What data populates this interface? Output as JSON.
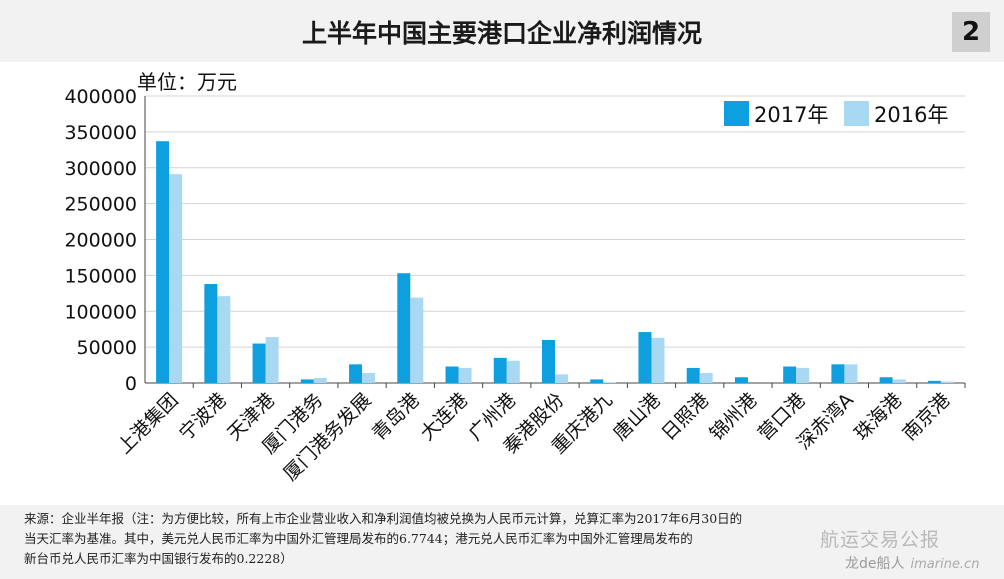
{
  "header": {
    "title": "上半年中国主要港口企业净利润情况",
    "page_number": "2"
  },
  "chart_data": {
    "type": "bar",
    "title": "上半年中国主要港口企业净利润情况",
    "unit_label": "单位：万元",
    "categories": [
      "上港集团",
      "宁波港",
      "天津港",
      "厦门港务",
      "厦门港务发展",
      "青岛港",
      "大连港",
      "广州港",
      "秦港股份",
      "重庆港九",
      "唐山港",
      "日照港",
      "锦州港",
      "营口港",
      "深赤湾A",
      "珠海港",
      "南京港"
    ],
    "series": [
      {
        "name": "2017年",
        "color": "#0e9fdf",
        "values": [
          337000,
          138000,
          55000,
          5000,
          26000,
          153000,
          23000,
          35000,
          60000,
          5000,
          71000,
          21000,
          8000,
          23000,
          26000,
          8000,
          3000
        ]
      },
      {
        "name": "2016年",
        "color": "#a8d8f2",
        "values": [
          291000,
          121000,
          64000,
          7000,
          14000,
          119000,
          21000,
          31000,
          12000,
          1000,
          63000,
          14000,
          0,
          21000,
          26000,
          5000,
          2000
        ]
      }
    ],
    "ylim": [
      0,
      400000
    ],
    "yticks": [
      0,
      50000,
      100000,
      150000,
      200000,
      250000,
      300000,
      350000,
      400000
    ],
    "grid": true,
    "legend_position": "top-right"
  },
  "footnote": {
    "line1": "来源：企业半年报（注：为方便比较，所有上市企业营业收入和净利润值均被兑换为人民币元计算，兑算汇率为2017年6月30日的",
    "line2": "当天汇率为基准。其中，美元兑人民币汇率为中国外汇管理局发布的6.7744；港元兑人民币汇率为中国外汇管理局发布的",
    "line3": "新台币兑人民币汇率为中国银行发布的0.2228）"
  },
  "watermark": {
    "text": "航运交易公报",
    "logo_text": "龙de船人",
    "logo_domain": "imarine.cn"
  }
}
